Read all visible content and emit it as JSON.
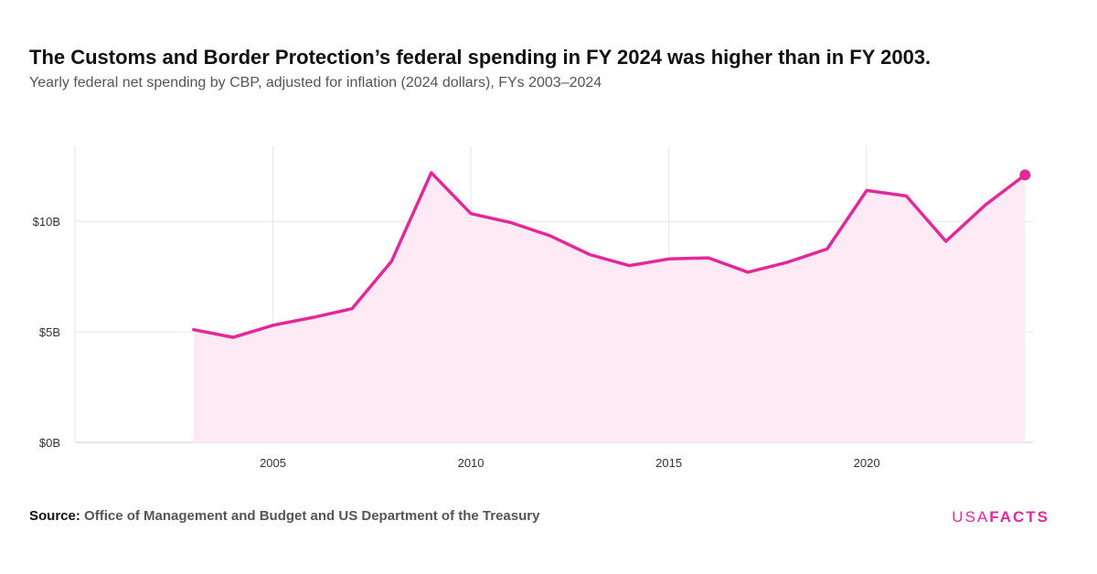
{
  "title": "The Customs and Border Protection’s federal spending in FY 2024 was higher than in FY 2003.",
  "subtitle": "Yearly federal net spending by CBP, adjusted for inflation (2024 dollars), FYs 2003–2024",
  "source": {
    "label": "Source:",
    "text": "Office of Management and Budget and US Department of the Treasury"
  },
  "logo": {
    "part1": "USA",
    "part2": "FACTS"
  },
  "colors": {
    "line": "#e2299b",
    "fill": "#fdeaf4",
    "grid": "#e6e6e6"
  },
  "chart_data": {
    "type": "area",
    "x": [
      2003,
      2004,
      2005,
      2006,
      2007,
      2008,
      2009,
      2010,
      2011,
      2012,
      2013,
      2014,
      2015,
      2016,
      2017,
      2018,
      2019,
      2020,
      2021,
      2022,
      2023,
      2024
    ],
    "values": [
      5.1,
      4.75,
      5.3,
      5.65,
      6.05,
      8.2,
      12.2,
      10.35,
      9.95,
      9.35,
      8.5,
      8.0,
      8.3,
      8.35,
      7.7,
      8.15,
      8.75,
      11.4,
      11.15,
      9.1,
      10.75,
      12.1
    ],
    "xticks": [
      2005,
      2010,
      2015,
      2020
    ],
    "xtick_labels": [
      "2005",
      "2010",
      "2015",
      "2020"
    ],
    "yticks": [
      0,
      5,
      10
    ],
    "ytick_labels": [
      "$0B",
      "$5B",
      "$10B"
    ],
    "xlim": [
      2000,
      2024.2
    ],
    "ylim": [
      0,
      13.4
    ],
    "grid": true,
    "highlight_last_point": true
  }
}
